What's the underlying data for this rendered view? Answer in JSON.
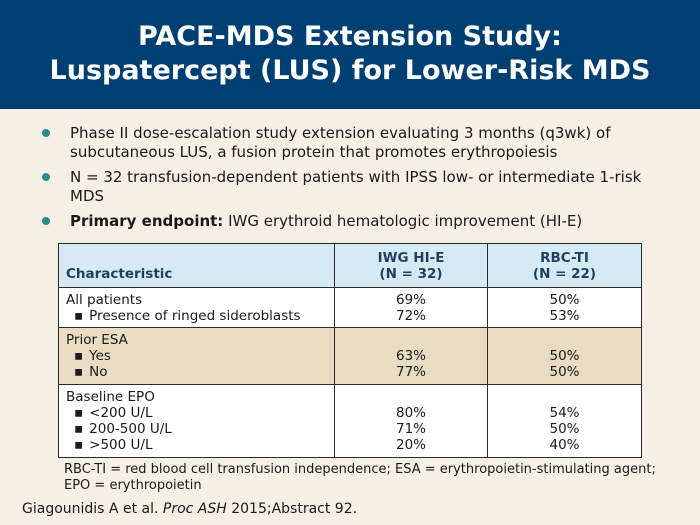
{
  "title": {
    "line1": "PACE-MDS Extension Study:",
    "line2": "Luspatercept (LUS) for Lower-Risk MDS"
  },
  "bullets": [
    {
      "prefix": "",
      "text": "Phase II dose-escalation study extension evaluating 3 months (q3wk) of subcutaneous LUS, a fusion protein that promotes erythropoiesis"
    },
    {
      "prefix": "",
      "text": "N = 32 transfusion-dependent patients with IPSS low- or intermediate 1-risk MDS"
    },
    {
      "prefix": "Primary endpoint:",
      "text": " IWG erythroid hematologic improvement (HI-E)"
    }
  ],
  "table": {
    "headers": {
      "characteristic": "Characteristic",
      "col1_line1": "IWG HI-E",
      "col1_line2": "(N = 32)",
      "col2_line1": "RBC-TI",
      "col2_line2": "(N = 22)"
    },
    "groups": [
      {
        "rows": [
          {
            "label": "All patients",
            "hie": "69%",
            "rbcti": "50%"
          },
          {
            "label": "Presence of ringed sideroblasts",
            "hie": "72%",
            "rbcti": "53%"
          }
        ]
      },
      {
        "title": "Prior ESA",
        "rows": [
          {
            "label": "Yes",
            "hie": "63%",
            "rbcti": "50%"
          },
          {
            "label": "No",
            "hie": "77%",
            "rbcti": "50%"
          }
        ]
      },
      {
        "title": "Baseline EPO",
        "rows": [
          {
            "label": "<200 U/L",
            "hie": "80%",
            "rbcti": "54%"
          },
          {
            "label": "200-500 U/L",
            "hie": "71%",
            "rbcti": "50%"
          },
          {
            "label": ">500 U/L",
            "hie": "20%",
            "rbcti": "40%"
          }
        ]
      }
    ]
  },
  "footnote": "RBC-TI = red blood cell transfusion independence; ESA = erythropoietin-stimulating agent; EPO = erythropoietin",
  "citation": {
    "authors": "Giagounidis A et al. ",
    "journal": "Proc ASH",
    "rest": " 2015;Abstract 92."
  },
  "colors": {
    "header_bg": "#003f72",
    "bullet_dot": "#2e8a8c",
    "table_header_bg": "#d5eaf5",
    "table_band_bg": "#e8ddc2"
  }
}
